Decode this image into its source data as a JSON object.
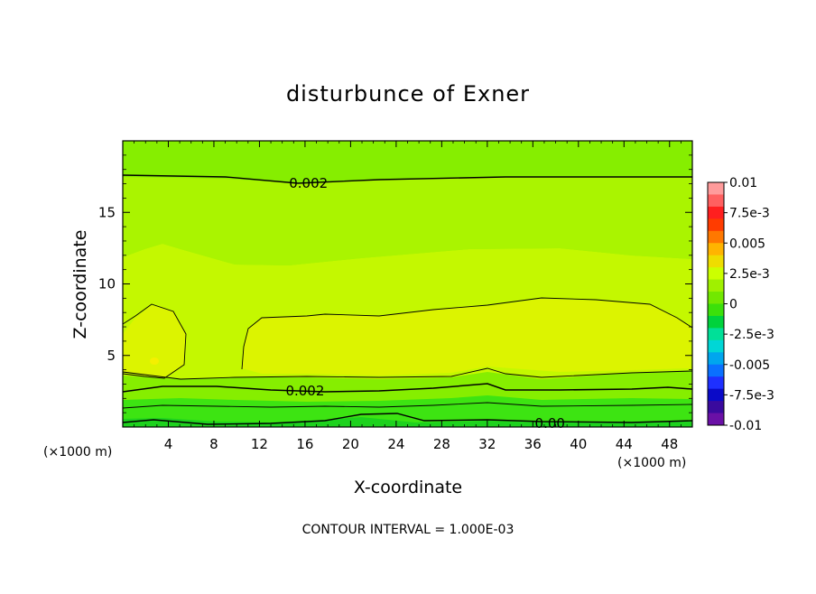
{
  "chart_data": {
    "type": "heatmap",
    "title": "disturbunce of Exner",
    "xlabel": "X-coordinate",
    "ylabel": "Z-coordinate",
    "x_unit_left": "(×1000 m)",
    "x_unit_right": "(×1000 m)",
    "xlim": [
      0,
      50
    ],
    "ylim": [
      0,
      20
    ],
    "xticks": [
      4,
      8,
      12,
      16,
      20,
      24,
      28,
      32,
      36,
      40,
      44,
      48
    ],
    "yticks": [
      5,
      10,
      15
    ],
    "contour_interval_text": "CONTOUR INTERVAL = 1.000E-03",
    "contour_labels": [
      {
        "text": "0.002",
        "x": 16.3,
        "z": 17.1
      },
      {
        "text": "0.002",
        "x": 16.0,
        "z": 2.6
      },
      {
        "text": "0.00",
        "x": 37.5,
        "z": 0.3
      }
    ],
    "colorbar": {
      "labels": [
        "0.01",
        "7.5e-3",
        "0.005",
        "2.5e-3",
        "0",
        "-2.5e-3",
        "-0.005",
        "-7.5e-3",
        "-0.01"
      ],
      "colors": [
        "#ff9b9b",
        "#ff6060",
        "#ff1f1f",
        "#ff3c00",
        "#ff7800",
        "#ffb400",
        "#eedd00",
        "#ccff00",
        "#a0f000",
        "#72e800",
        "#3ce00a",
        "#00d23c",
        "#00e098",
        "#00d6d6",
        "#00a6ee",
        "#0a70ff",
        "#1e30ff",
        "#0a0ac8",
        "#3a0a9e",
        "#6a10a6"
      ],
      "range": [
        -0.01,
        0.01
      ]
    },
    "field_levels": {
      "colors": {
        "lt_0": "#1ed21e",
        "0_1e-3": "#3de412",
        "1e-3_2e-3": "#86ee00",
        "2e-3_2.5e-3": "#aaf400",
        "2.5e-3_3e-3": "#c4f800",
        "3e-3_3.5e-3": "#dcf400",
        "gt_3.5e-3": "#f4f000"
      }
    }
  }
}
